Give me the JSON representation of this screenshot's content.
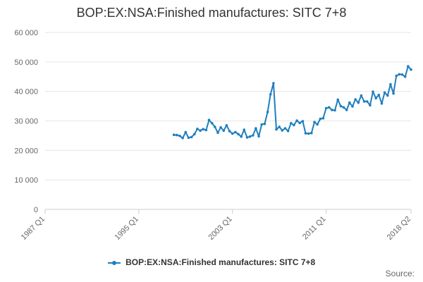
{
  "chart_data": {
    "type": "line",
    "title": "BOP:EX:NSA:Finished manufactures: SITC 7+8",
    "xlabel": "",
    "ylabel": "",
    "ylim": [
      0,
      60000
    ],
    "yticks": [
      0,
      10000,
      20000,
      30000,
      40000,
      50000,
      60000
    ],
    "ytick_labels": [
      "0",
      "10 000",
      "20 000",
      "30 000",
      "40 000",
      "50 000",
      "60 000"
    ],
    "xlim": [
      "1987 Q1",
      "2018 Q2"
    ],
    "xticks": [
      "1987 Q1",
      "1995 Q1",
      "2003 Q1",
      "2011 Q1",
      "2018 Q2"
    ],
    "grid": true,
    "legend_position": "bottom",
    "source_label": "Source:",
    "colors": {
      "series": "#1f7fbf",
      "grid": "#e6e6e6",
      "axis": "#cccccc"
    },
    "series": [
      {
        "name": "BOP:EX:NSA:Finished manufactures: SITC 7+8",
        "points": [
          [
            "1998 Q1",
            25300
          ],
          [
            "1998 Q2",
            25200
          ],
          [
            "1998 Q3",
            24900
          ],
          [
            "1998 Q4",
            24200
          ],
          [
            "1999 Q1",
            26200
          ],
          [
            "1999 Q2",
            24300
          ],
          [
            "1999 Q3",
            24500
          ],
          [
            "1999 Q4",
            25500
          ],
          [
            "2000 Q1",
            27300
          ],
          [
            "2000 Q2",
            26700
          ],
          [
            "2000 Q3",
            27200
          ],
          [
            "2000 Q4",
            26900
          ],
          [
            "2001 Q1",
            30300
          ],
          [
            "2001 Q2",
            29200
          ],
          [
            "2001 Q3",
            28000
          ],
          [
            "2001 Q4",
            26000
          ],
          [
            "2002 Q1",
            27800
          ],
          [
            "2002 Q2",
            26700
          ],
          [
            "2002 Q3",
            28500
          ],
          [
            "2002 Q4",
            26500
          ],
          [
            "2003 Q1",
            25700
          ],
          [
            "2003 Q2",
            26200
          ],
          [
            "2003 Q3",
            25500
          ],
          [
            "2003 Q4",
            24700
          ],
          [
            "2004 Q1",
            27000
          ],
          [
            "2004 Q2",
            24400
          ],
          [
            "2004 Q3",
            24700
          ],
          [
            "2004 Q4",
            25100
          ],
          [
            "2005 Q1",
            27500
          ],
          [
            "2005 Q2",
            24800
          ],
          [
            "2005 Q3",
            28800
          ],
          [
            "2005 Q4",
            29000
          ],
          [
            "2006 Q1",
            33000
          ],
          [
            "2006 Q2",
            39000
          ],
          [
            "2006 Q3",
            42800
          ],
          [
            "2006 Q4",
            27100
          ],
          [
            "2007 Q1",
            28000
          ],
          [
            "2007 Q2",
            26800
          ],
          [
            "2007 Q3",
            27500
          ],
          [
            "2007 Q4",
            26600
          ],
          [
            "2008 Q1",
            29200
          ],
          [
            "2008 Q2",
            28600
          ],
          [
            "2008 Q3",
            30100
          ],
          [
            "2008 Q4",
            29300
          ],
          [
            "2009 Q1",
            29900
          ],
          [
            "2009 Q2",
            25800
          ],
          [
            "2009 Q3",
            25700
          ],
          [
            "2009 Q4",
            25900
          ],
          [
            "2010 Q1",
            29600
          ],
          [
            "2010 Q2",
            28800
          ],
          [
            "2010 Q3",
            30700
          ],
          [
            "2010 Q4",
            30900
          ],
          [
            "2011 Q1",
            34300
          ],
          [
            "2011 Q2",
            34600
          ],
          [
            "2011 Q3",
            33700
          ],
          [
            "2011 Q4",
            33600
          ],
          [
            "2012 Q1",
            37200
          ],
          [
            "2012 Q2",
            35000
          ],
          [
            "2012 Q3",
            34600
          ],
          [
            "2012 Q4",
            33700
          ],
          [
            "2013 Q1",
            36200
          ],
          [
            "2013 Q2",
            34900
          ],
          [
            "2013 Q3",
            37300
          ],
          [
            "2013 Q4",
            36200
          ],
          [
            "2014 Q1",
            38600
          ],
          [
            "2014 Q2",
            36600
          ],
          [
            "2014 Q3",
            36600
          ],
          [
            "2014 Q4",
            35300
          ],
          [
            "2015 Q1",
            39900
          ],
          [
            "2015 Q2",
            37700
          ],
          [
            "2015 Q3",
            38800
          ],
          [
            "2015 Q4",
            35900
          ],
          [
            "2016 Q1",
            39600
          ],
          [
            "2016 Q2",
            38600
          ],
          [
            "2016 Q3",
            42400
          ],
          [
            "2016 Q4",
            39300
          ],
          [
            "2017 Q1",
            45300
          ],
          [
            "2017 Q2",
            45800
          ],
          [
            "2017 Q3",
            45700
          ],
          [
            "2017 Q4",
            45000
          ],
          [
            "2018 Q1",
            48500
          ],
          [
            "2018 Q2",
            47400
          ]
        ]
      }
    ]
  }
}
